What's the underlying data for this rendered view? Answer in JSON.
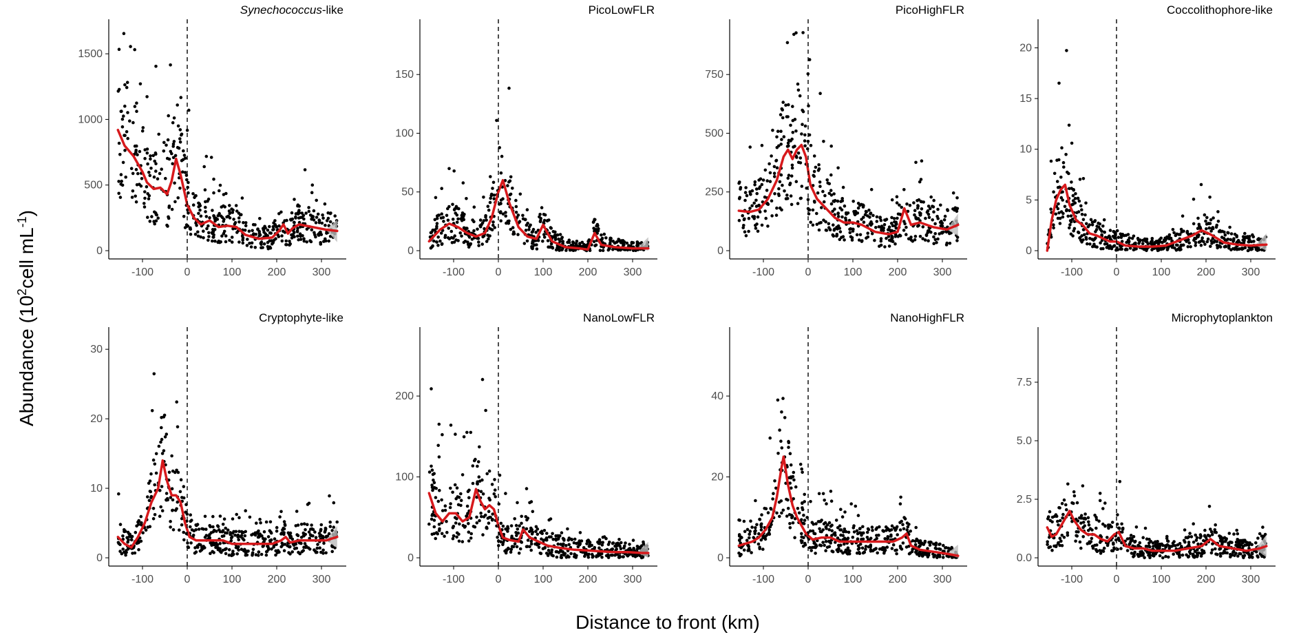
{
  "figure": {
    "ylabel": "Abundance (10",
    "ylabel_sup1": "2",
    "ylabel_mid": "cell mL",
    "ylabel_sup2": "-1",
    "ylabel_end": ")",
    "xlabel": "Distance to front (km)"
  },
  "colors": {
    "points": "#000000",
    "smooth": "#d7191c",
    "ribbon": "#bdbdbd",
    "front_line": "#000000"
  },
  "chart_data": [
    {
      "type": "scatter",
      "title": "Synechococcus-like",
      "title_italic": "Synechococcus",
      "title_suffix": "-like",
      "xlim": [
        -160,
        340
      ],
      "ylim": [
        0,
        1700
      ],
      "xticks": [
        -100,
        0,
        100,
        200,
        300
      ],
      "yticks": [
        0,
        500,
        1000,
        1500
      ],
      "front_x": 0,
      "grid": false,
      "smooth_x": [
        -155,
        -140,
        -120,
        -100,
        -90,
        -75,
        -60,
        -45,
        -35,
        -25,
        -15,
        0,
        15,
        30,
        50,
        70,
        90,
        110,
        130,
        160,
        190,
        205,
        215,
        225,
        235,
        250,
        280,
        310,
        335
      ],
      "smooth_y": [
        920,
        800,
        720,
        600,
        520,
        470,
        480,
        430,
        530,
        700,
        580,
        350,
        250,
        200,
        230,
        180,
        190,
        180,
        120,
        90,
        100,
        150,
        200,
        130,
        170,
        200,
        180,
        160,
        150
      ]
    },
    {
      "type": "scatter",
      "title": "PicoLowFLR",
      "xlim": [
        -160,
        340
      ],
      "ylim": [
        0,
        190
      ],
      "xticks": [
        -100,
        0,
        100,
        200,
        300
      ],
      "yticks": [
        0,
        50,
        100,
        150
      ],
      "front_x": 0,
      "grid": false,
      "smooth_x": [
        -155,
        -130,
        -110,
        -90,
        -70,
        -50,
        -30,
        -15,
        0,
        10,
        25,
        45,
        65,
        85,
        100,
        120,
        150,
        180,
        200,
        215,
        230,
        260,
        300,
        335
      ],
      "smooth_y": [
        8,
        18,
        23,
        20,
        15,
        12,
        15,
        28,
        50,
        60,
        40,
        20,
        12,
        10,
        22,
        8,
        3,
        2,
        1,
        15,
        5,
        3,
        2,
        2
      ]
    },
    {
      "type": "scatter",
      "title": "PicoHighFLR",
      "xlim": [
        -160,
        340
      ],
      "ylim": [
        0,
        950
      ],
      "xticks": [
        -100,
        0,
        100,
        200,
        300
      ],
      "yticks": [
        0,
        250,
        500,
        750
      ],
      "front_x": 0,
      "grid": false,
      "smooth_x": [
        -155,
        -130,
        -110,
        -90,
        -70,
        -55,
        -45,
        -35,
        -25,
        -15,
        -5,
        5,
        20,
        40,
        60,
        80,
        100,
        120,
        150,
        180,
        200,
        215,
        230,
        250,
        280,
        310,
        335
      ],
      "smooth_y": [
        170,
        165,
        175,
        220,
        300,
        400,
        430,
        390,
        430,
        450,
        400,
        280,
        220,
        180,
        140,
        120,
        120,
        110,
        80,
        70,
        80,
        180,
        110,
        120,
        100,
        90,
        110
      ]
    },
    {
      "type": "scatter",
      "title": "Coccolithophore-like",
      "xlim": [
        -160,
        340
      ],
      "ylim": [
        0,
        22
      ],
      "xticks": [
        -100,
        0,
        100,
        200,
        300
      ],
      "yticks": [
        0,
        5,
        10,
        15,
        20
      ],
      "front_x": 0,
      "grid": false,
      "smooth_x": [
        -155,
        -145,
        -135,
        -125,
        -115,
        -105,
        -90,
        -75,
        -60,
        -45,
        -30,
        -15,
        0,
        20,
        50,
        80,
        110,
        140,
        170,
        190,
        210,
        240,
        270,
        300,
        335
      ],
      "smooth_y": [
        0,
        3,
        5,
        6,
        6.5,
        4.5,
        3,
        2.5,
        1.7,
        1.5,
        1.2,
        0.9,
        0.9,
        0.5,
        0.4,
        0.4,
        0.5,
        1,
        1.5,
        2,
        1.6,
        0.8,
        0.6,
        0.5,
        0.6
      ]
    },
    {
      "type": "scatter",
      "title": "Cryptophyte-like",
      "xlim": [
        -160,
        340
      ],
      "ylim": [
        0,
        32
      ],
      "xticks": [
        -100,
        0,
        100,
        200,
        300
      ],
      "yticks": [
        0,
        10,
        20,
        30
      ],
      "front_x": 0,
      "grid": false,
      "smooth_x": [
        -155,
        -140,
        -125,
        -110,
        -95,
        -80,
        -65,
        -55,
        -45,
        -35,
        -25,
        -15,
        -5,
        5,
        20,
        40,
        60,
        80,
        100,
        130,
        160,
        190,
        210,
        220,
        230,
        250,
        280,
        310,
        335
      ],
      "smooth_y": [
        3,
        2,
        1.5,
        3,
        5,
        8,
        10,
        14,
        11,
        9,
        9,
        8,
        5,
        3,
        2.5,
        2.5,
        2.5,
        2.5,
        2,
        2,
        2,
        2,
        2.5,
        3,
        2.2,
        2.5,
        2.5,
        2.5,
        3
      ]
    },
    {
      "type": "scatter",
      "title": "NanoLowFLR",
      "xlim": [
        -160,
        340
      ],
      "ylim": [
        0,
        275
      ],
      "xticks": [
        -100,
        0,
        100,
        200,
        300
      ],
      "yticks": [
        0,
        100,
        200
      ],
      "front_x": 0,
      "grid": false,
      "smooth_x": [
        -155,
        -140,
        -125,
        -110,
        -95,
        -80,
        -65,
        -50,
        -40,
        -30,
        -20,
        -10,
        0,
        10,
        25,
        45,
        55,
        70,
        90,
        110,
        140,
        170,
        200,
        230,
        260,
        290,
        320,
        335
      ],
      "smooth_y": [
        80,
        55,
        45,
        55,
        55,
        45,
        50,
        85,
        70,
        60,
        65,
        60,
        40,
        25,
        22,
        20,
        35,
        25,
        20,
        15,
        12,
        10,
        9,
        8,
        7,
        7,
        6,
        6
      ]
    },
    {
      "type": "scatter",
      "title": "NanoHighFLR",
      "xlim": [
        -160,
        340
      ],
      "ylim": [
        0,
        55
      ],
      "xticks": [
        -100,
        0,
        100,
        200,
        300
      ],
      "yticks": [
        0,
        20,
        40
      ],
      "front_x": 0,
      "grid": false,
      "smooth_x": [
        -155,
        -140,
        -125,
        -110,
        -95,
        -80,
        -70,
        -60,
        -55,
        -45,
        -35,
        -25,
        -15,
        -5,
        10,
        30,
        50,
        70,
        100,
        130,
        160,
        190,
        210,
        220,
        230,
        250,
        280,
        310,
        335
      ],
      "smooth_y": [
        3,
        3.5,
        4,
        5,
        7,
        10,
        15,
        22,
        25,
        18,
        13,
        10,
        8,
        6,
        4.5,
        5,
        5,
        4,
        4,
        4,
        4,
        4,
        5,
        6,
        3,
        2,
        1.5,
        1,
        0.5
      ]
    },
    {
      "type": "scatter",
      "title": "Microphytoplankton",
      "xlim": [
        -160,
        340
      ],
      "ylim": [
        0,
        9.5
      ],
      "xticks": [
        -100,
        0,
        100,
        200,
        300
      ],
      "yticks": [
        0,
        2.5,
        5.0,
        7.5
      ],
      "ytick_labels": [
        "0.0",
        "2.5",
        "5.0",
        "7.5"
      ],
      "front_x": 0,
      "grid": false,
      "smooth_x": [
        -155,
        -145,
        -135,
        -120,
        -105,
        -95,
        -80,
        -65,
        -50,
        -35,
        -20,
        -5,
        5,
        20,
        40,
        60,
        80,
        100,
        130,
        160,
        190,
        210,
        230,
        260,
        290,
        320,
        335
      ],
      "smooth_y": [
        1.3,
        0.9,
        1,
        1.5,
        2,
        1.6,
        1.2,
        1,
        1,
        0.8,
        0.7,
        1,
        1.1,
        0.5,
        0.4,
        0.4,
        0.3,
        0.3,
        0.3,
        0.4,
        0.5,
        0.8,
        0.5,
        0.4,
        0.3,
        0.4,
        0.5
      ]
    }
  ]
}
